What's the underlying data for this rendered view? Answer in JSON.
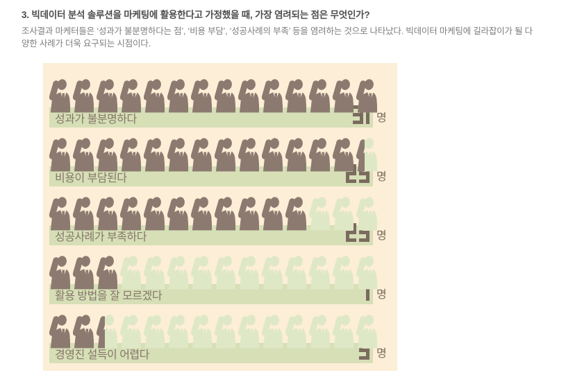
{
  "header": {
    "title": "3. 빅데이터 분석 솔루션을 마케팅에 활용한다고 가정했을 때, 가장 염려되는 점은 무엇인가?",
    "body_lines": [
      "조사결과 마케터들은 ‘성과가 불분명하다는 점’, ‘비용 부담’, ‘성공사례의 부족’ 등을 염려하는 것으로 나타났다. 빅데이터 마케팅에 길라잡이가 될 다",
      "양한 사례가 더욱 요구되는 시점이다."
    ]
  },
  "chart_data": {
    "type": "bar",
    "subtype": "pictogram-bar",
    "icon": "businessman-raised-fist-icon",
    "categories": [
      "성과가 불분명하다",
      "비용이 부담된다",
      "성공사례가 부족하다",
      "활용 방법을 잘 모르겠다",
      "경영진 설득이 어렵다"
    ],
    "values": [
      31,
      29,
      25,
      7,
      5
    ],
    "unit_suffix": "명",
    "icons_per_row": 14,
    "max_value": 31,
    "filled_icons": [
      14,
      13.35,
      11,
      3,
      2.35
    ],
    "legend_position": "none",
    "grid": false,
    "colors": {
      "panel_background": "#fceed7",
      "bar_background": "#d6dfb6",
      "icon_dark": "#8c7a70",
      "icon_light": "#dfe8c6",
      "label_text": "#85766a",
      "number_text": "#7b6b5f"
    }
  }
}
